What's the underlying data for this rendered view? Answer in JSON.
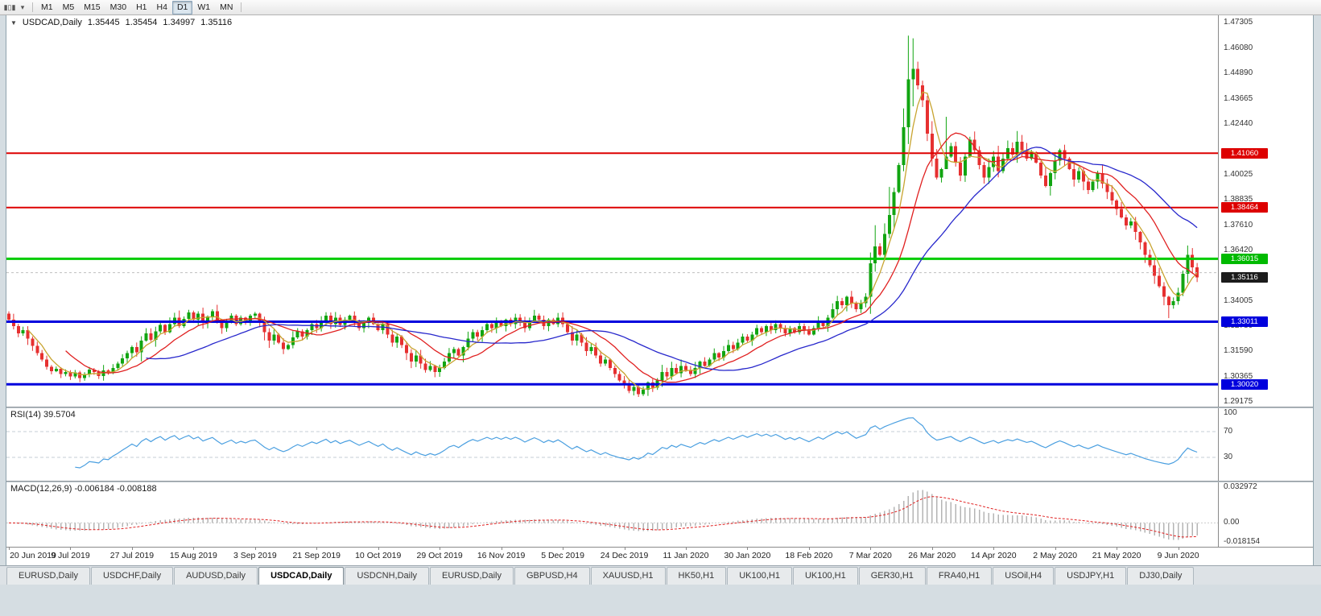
{
  "icons": {
    "symbol_dropdown": "▼",
    "toolbar_caret": "▾",
    "charts_glyph": "▮▯▮"
  },
  "toolbar": {
    "timeframes": [
      {
        "label": "M1",
        "active": false
      },
      {
        "label": "M5",
        "active": false
      },
      {
        "label": "M15",
        "active": false
      },
      {
        "label": "M30",
        "active": false
      },
      {
        "label": "H1",
        "active": false
      },
      {
        "label": "H4",
        "active": false
      },
      {
        "label": "D1",
        "active": true
      },
      {
        "label": "W1",
        "active": false
      },
      {
        "label": "MN",
        "active": false
      }
    ]
  },
  "chart": {
    "title": {
      "symbol": "USDCAD,Daily",
      "open": "1.35445",
      "high": "1.35454",
      "low": "1.34997",
      "close": "1.35116"
    },
    "price_axis": {
      "ticks": [
        "1.47305",
        "1.46080",
        "1.44890",
        "1.43665",
        "1.42440",
        "1.40025",
        "1.38835",
        "1.37610",
        "1.36420",
        "1.34005",
        "1.32780",
        "1.31590",
        "1.30365",
        "1.29175"
      ],
      "badges": [
        {
          "label": "1.41060",
          "price": 1.4106,
          "bg": "#dd0000"
        },
        {
          "label": "1.38464",
          "price": 1.38464,
          "bg": "#dd0000"
        },
        {
          "label": "1.36015",
          "price": 1.36015,
          "bg": "#00ba00"
        },
        {
          "label": "1.35116",
          "price": 1.35116,
          "bg": "#1c1c1c"
        },
        {
          "label": "1.33011",
          "price": 1.33011,
          "bg": "#0000dd"
        },
        {
          "label": "1.30020",
          "price": 1.3002,
          "bg": "#0000dd"
        }
      ]
    },
    "hlines": [
      {
        "price": 1.4106,
        "color": "#dd0000",
        "w": 2,
        "dash": false
      },
      {
        "price": 1.38464,
        "color": "#dd0000",
        "w": 2,
        "dash": false
      },
      {
        "price": 1.36015,
        "color": "#00cc00",
        "w": 3,
        "dash": false
      },
      {
        "price": 1.3535,
        "color": "#bfbfbf",
        "w": 1,
        "dash": true
      },
      {
        "price": 1.33011,
        "color": "#0000dd",
        "w": 3,
        "dash": false
      },
      {
        "price": 1.3002,
        "color": "#0000dd",
        "w": 3,
        "dash": false
      }
    ]
  },
  "chart_data": {
    "type": "candlestick",
    "symbol": "USDCAD",
    "timeframe": "Daily",
    "price_range": [
      1.2895,
      1.4765
    ],
    "x_labels": [
      "20 Jun 2019",
      "9 Jul 2019",
      "27 Jul 2019",
      "15 Aug 2019",
      "3 Sep 2019",
      "21 Sep 2019",
      "10 Oct 2019",
      "29 Oct 2019",
      "16 Nov 2019",
      "5 Dec 2019",
      "24 Dec 2019",
      "11 Jan 2020",
      "30 Jan 2020",
      "18 Feb 2020",
      "7 Mar 2020",
      "26 Mar 2020",
      "14 Apr 2020",
      "2 May 2020",
      "21 May 2020",
      "9 Jun 2020"
    ],
    "label_step": 13,
    "closes": [
      1.331,
      1.328,
      1.3245,
      1.326,
      1.322,
      1.3185,
      1.315,
      1.312,
      1.3085,
      1.3065,
      1.3075,
      1.305,
      1.306,
      1.304,
      1.3058,
      1.3032,
      1.3048,
      1.3072,
      1.306,
      1.3042,
      1.3068,
      1.3055,
      1.308,
      1.31,
      1.3125,
      1.315,
      1.318,
      1.3155,
      1.321,
      1.3245,
      1.3215,
      1.3255,
      1.3285,
      1.325,
      1.329,
      1.332,
      1.328,
      1.3315,
      1.3345,
      1.331,
      1.334,
      1.3295,
      1.3325,
      1.335,
      1.331,
      1.327,
      1.33,
      1.333,
      1.329,
      1.332,
      1.33,
      1.333,
      1.334,
      1.33,
      1.325,
      1.321,
      1.324,
      1.32,
      1.317,
      1.319,
      1.3225,
      1.3255,
      1.323,
      1.326,
      1.329,
      1.327,
      1.33,
      1.333,
      1.329,
      1.332,
      1.3285,
      1.331,
      1.333,
      1.33,
      1.327,
      1.3295,
      1.332,
      1.329,
      1.326,
      1.329,
      1.324,
      1.32,
      1.323,
      1.319,
      1.315,
      1.311,
      1.314,
      1.31,
      1.307,
      1.309,
      1.306,
      1.308,
      1.311,
      1.315,
      1.317,
      1.314,
      1.318,
      1.322,
      1.325,
      1.323,
      1.326,
      1.329,
      1.327,
      1.33,
      1.328,
      1.331,
      1.329,
      1.332,
      1.33,
      1.327,
      1.33,
      1.333,
      1.331,
      1.328,
      1.331,
      1.329,
      1.332,
      1.329,
      1.325,
      1.321,
      1.324,
      1.32,
      1.316,
      1.318,
      1.314,
      1.31,
      1.312,
      1.308,
      1.305,
      1.302,
      1.3,
      1.297,
      1.299,
      1.2955,
      1.2975,
      1.301,
      1.2985,
      1.302,
      1.306,
      1.304,
      1.308,
      1.3055,
      1.309,
      1.307,
      1.305,
      1.308,
      1.311,
      1.309,
      1.312,
      1.315,
      1.313,
      1.316,
      1.319,
      1.317,
      1.32,
      1.323,
      1.321,
      1.324,
      1.327,
      1.325,
      1.328,
      1.326,
      1.329,
      1.327,
      1.3245,
      1.327,
      1.325,
      1.328,
      1.326,
      1.324,
      1.327,
      1.33,
      1.328,
      1.332,
      1.336,
      1.34,
      1.338,
      1.342,
      1.339,
      1.336,
      1.339,
      1.342,
      1.358,
      1.366,
      1.362,
      1.372,
      1.381,
      1.392,
      1.405,
      1.423,
      1.446,
      1.451,
      1.443,
      1.436,
      1.42,
      1.408,
      1.399,
      1.403,
      1.409,
      1.414,
      1.406,
      1.4,
      1.409,
      1.417,
      1.412,
      1.405,
      1.399,
      1.404,
      1.409,
      1.402,
      1.408,
      1.413,
      1.41,
      1.416,
      1.412,
      1.408,
      1.411,
      1.406,
      1.4,
      1.395,
      1.401,
      1.407,
      1.412,
      1.408,
      1.403,
      1.398,
      1.402,
      1.397,
      1.393,
      1.397,
      1.401,
      1.396,
      1.392,
      1.388,
      1.384,
      1.38,
      1.376,
      1.378,
      1.373,
      1.368,
      1.362,
      1.357,
      1.352,
      1.347,
      1.342,
      1.338,
      1.34,
      1.344,
      1.353,
      1.362,
      1.356,
      1.3512
    ],
    "wick_overrides": {
      "183": [
        1.3762,
        1.354
      ],
      "186": [
        1.3945,
        1.37
      ],
      "189": [
        1.432,
        1.402
      ],
      "190": [
        1.4668,
        1.415
      ],
      "191": [
        1.4655,
        1.433
      ],
      "198": [
        1.428,
        1.403
      ],
      "213": [
        1.4212,
        1.406
      ],
      "245": [
        1.3425,
        1.3318
      ],
      "249": [
        1.3665,
        1.3485
      ]
    },
    "up_color": "#11a511",
    "down_color": "#e63030",
    "ma": [
      {
        "period": 5,
        "color": "#c8a430"
      },
      {
        "period": 13,
        "color": "#e02020"
      },
      {
        "period": 30,
        "color": "#2828cc"
      }
    ]
  },
  "rsi": {
    "label": "RSI(14) 39.5704",
    "period": 14,
    "color": "#4a9fe0",
    "axis": [
      "100",
      "70",
      "30"
    ],
    "axis_values": [
      100,
      70,
      30
    ],
    "level_lines": [
      70,
      30
    ],
    "range": [
      0,
      100
    ]
  },
  "macd": {
    "label": "MACD(12,26,9) -0.006184 -0.008188",
    "fast": 12,
    "slow": 26,
    "signal": 9,
    "axis_top": "0.032972",
    "axis_zero": "0.00",
    "axis_bottom": "-0.018154",
    "range": [
      -0.0185,
      0.0335
    ],
    "hist_color": "#b4b4b4",
    "signal_color": "#e02020"
  },
  "tabs": [
    {
      "label": "EURUSD,Daily",
      "active": false
    },
    {
      "label": "USDCHF,Daily",
      "active": false
    },
    {
      "label": "AUDUSD,Daily",
      "active": false
    },
    {
      "label": "USDCAD,Daily",
      "active": true
    },
    {
      "label": "USDCNH,Daily",
      "active": false
    },
    {
      "label": "EURUSD,Daily",
      "active": false
    },
    {
      "label": "GBPUSD,H4",
      "active": false
    },
    {
      "label": "XAUUSD,H1",
      "active": false
    },
    {
      "label": "HK50,H1",
      "active": false
    },
    {
      "label": "UK100,H1",
      "active": false
    },
    {
      "label": "UK100,H1",
      "active": false
    },
    {
      "label": "GER30,H1",
      "active": false
    },
    {
      "label": "FRA40,H1",
      "active": false
    },
    {
      "label": "USOil,H4",
      "active": false
    },
    {
      "label": "USDJPY,H1",
      "active": false
    },
    {
      "label": "DJ30,Daily",
      "active": false
    }
  ]
}
